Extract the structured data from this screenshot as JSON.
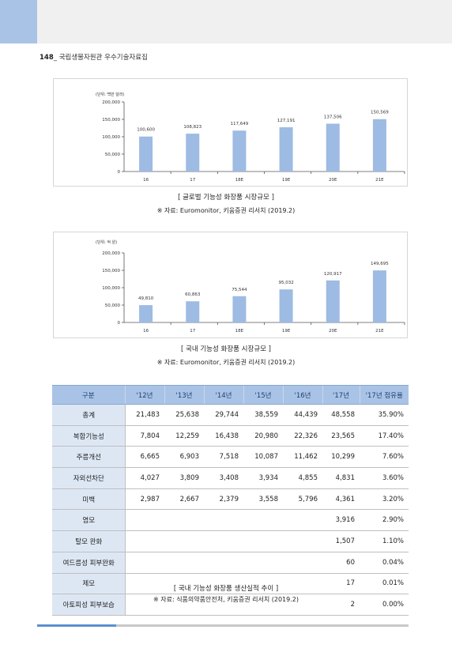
{
  "page_header": {
    "number": "148",
    "title": "_ 국립생물자원관 우수기술자료집"
  },
  "global_chart": {
    "unit": "(단위: 백만 달러)",
    "caption": "[ 글로벌 기능성 화장품 시장규모 ]",
    "source": "※ 자료: Euromonitor, 키움증권 리서치 (2019.2)"
  },
  "domestic_chart": {
    "unit": "(단위: 억 원)",
    "caption": "[ 국내 기능성 화장품 시장규모 ]",
    "source": "※ 자료: Euromonitor, 키움증권 리서치 (2019.2)"
  },
  "chart_data": [
    {
      "type": "bar",
      "categories": [
        "16",
        "17",
        "18E",
        "19E",
        "20E",
        "21E"
      ],
      "values": [
        100600,
        108823,
        117649,
        127191,
        137506,
        150569
      ],
      "value_labels": [
        "100,600",
        "108,823",
        "117,649",
        "127,191",
        "137,506",
        "150,569"
      ],
      "ylim": [
        0,
        200000
      ],
      "yticks": [
        "0",
        "50,000",
        "100,000",
        "150,000",
        "200,000"
      ],
      "ytick_values": [
        0,
        50000,
        100000,
        150000,
        200000
      ],
      "grid": false
    },
    {
      "type": "bar",
      "categories": [
        "16",
        "17",
        "18E",
        "19E",
        "20E",
        "21E"
      ],
      "values": [
        49810,
        60863,
        75544,
        95032,
        120917,
        149695
      ],
      "value_labels": [
        "49,810",
        "60,863",
        "75,544",
        "95,032",
        "120,917",
        "149,695"
      ],
      "ylim": [
        0,
        200000
      ],
      "yticks": [
        "0",
        "50,000",
        "100,000",
        "150,000",
        "200,000"
      ],
      "ytick_values": [
        0,
        50000,
        100000,
        150000,
        200000
      ],
      "grid": false
    }
  ],
  "table": {
    "headers": [
      "구분",
      "'12년",
      "'13년",
      "'14년",
      "'15년",
      "'16년",
      "'17년",
      "'17년 점유율"
    ],
    "rows": [
      [
        "총계",
        "21,483",
        "25,638",
        "29,744",
        "38,559",
        "44,439",
        "48,558",
        "35.90%"
      ],
      [
        "복합기능성",
        "7,804",
        "12,259",
        "16,438",
        "20,980",
        "22,326",
        "23,565",
        "17.40%"
      ],
      [
        "주름개선",
        "6,665",
        "6,903",
        "7,518",
        "10,087",
        "11,462",
        "10,299",
        "7.60%"
      ],
      [
        "자외선차단",
        "4,027",
        "3,809",
        "3,408",
        "3,934",
        "4,855",
        "4,831",
        "3.60%"
      ],
      [
        "미백",
        "2,987",
        "2,667",
        "2,379",
        "3,558",
        "5,796",
        "4,361",
        "3.20%"
      ],
      [
        "염모",
        "",
        "",
        "",
        "",
        "",
        "3,916",
        "2.90%"
      ],
      [
        "탈모 완화",
        "",
        "",
        "",
        "",
        "",
        "1,507",
        "1.10%"
      ],
      [
        "여드름성 피부완화",
        "",
        "",
        "",
        "",
        "",
        "60",
        "0.04%"
      ],
      [
        "제모",
        "",
        "",
        "",
        "",
        "",
        "17",
        "0.01%"
      ],
      [
        "아토피성 피부보습",
        "",
        "",
        "",
        "",
        "",
        "2",
        "0.00%"
      ]
    ],
    "caption": "[ 국내 기능성 화장품 생산실적 추이 ]",
    "source": "※ 자료: 식품의약품안전처, 키움증권 리서치 (2019.2)"
  }
}
